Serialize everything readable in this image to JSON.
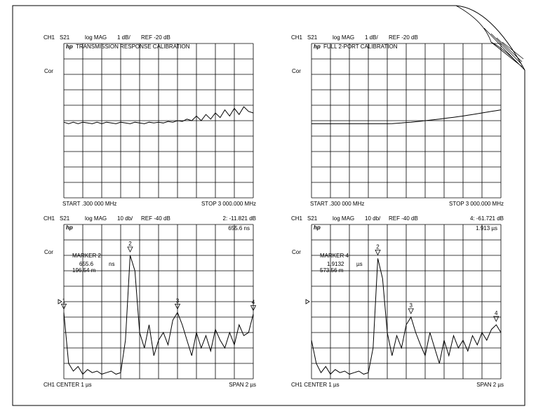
{
  "panels": [
    {
      "header": {
        "channel": "CH1",
        "param": "S21",
        "format": "log MAG",
        "scale": "1 dB/",
        "ref": "REF -20 dB"
      },
      "logo": "hp",
      "title": "TRANSMISSION RESPONSE CALIBRATION",
      "cor": "Cor",
      "footer_left": "START .300 000 MHz",
      "footer_right": "STOP 3 000.000 MHz",
      "trace": [
        4.9,
        4.8,
        4.9,
        4.8,
        4.9,
        4.85,
        4.8,
        4.9,
        4.8,
        4.9,
        4.85,
        4.8,
        4.9,
        4.85,
        4.8,
        4.9,
        4.85,
        4.8,
        4.9,
        4.85,
        4.9,
        4.85,
        4.95,
        4.9,
        5.0,
        4.95,
        5.1,
        5.0,
        5.3,
        5.0,
        5.4,
        5.1,
        5.5,
        5.2,
        5.7,
        5.3,
        5.8,
        5.4,
        5.9,
        5.6,
        5.5
      ]
    },
    {
      "header": {
        "channel": "CH1",
        "param": "S21",
        "format": "log MAG",
        "scale": "1 dB/",
        "ref": "REF -20 dB"
      },
      "logo": "hp",
      "title": "FULL 2-PORT CALIBRATION",
      "cor": "Cor",
      "footer_left": "START .300 000 MHz",
      "footer_right": "STOP 3 000.000 MHz",
      "trace": [
        4.8,
        4.8,
        4.8,
        4.8,
        4.8,
        4.8,
        4.8,
        4.8,
        4.8,
        4.8,
        4.8,
        4.8,
        4.8,
        4.8,
        4.8,
        4.8,
        4.8,
        4.81,
        4.83,
        4.85,
        4.88,
        4.9,
        4.93,
        4.96,
        5.0,
        5.03,
        5.07,
        5.1,
        5.14,
        5.18,
        5.22,
        5.26,
        5.3,
        5.35,
        5.4,
        5.45,
        5.5,
        5.55,
        5.6,
        5.65,
        5.7
      ]
    },
    {
      "header": {
        "channel": "CH1",
        "param": "S21",
        "format": "log MAG",
        "scale": "10 db/",
        "ref": "REF -40 dB",
        "readout": "2: -11.821 dB"
      },
      "logo": "hp",
      "readout_time": "655.6 ns",
      "cor": "Cor",
      "marker_box": {
        "label": "MARKER 2",
        "time": "655.6",
        "unit": "ns",
        "distance": "196.54 m"
      },
      "footer_left": "CH1 CENTER 1 µs",
      "footer_right": "SPAN 2 µs",
      "trace": [
        4.3,
        1.0,
        0.5,
        0.8,
        0.3,
        0.6,
        0.4,
        0.5,
        0.3,
        0.4,
        0.5,
        0.3,
        0.4,
        2.5,
        8.0,
        7.0,
        3.0,
        2.0,
        3.5,
        1.5,
        2.5,
        3.0,
        2.2,
        3.8,
        4.3,
        3.5,
        2.5,
        1.5,
        3.0,
        2.0,
        2.8,
        1.8,
        3.2,
        2.5,
        2.0,
        3.0,
        2.2,
        3.5,
        2.8,
        3.0,
        4.2
      ],
      "markers": [
        {
          "label": "1",
          "x": 0,
          "y": 4.3
        },
        {
          "label": "2",
          "x": 3.5,
          "y": 8.0
        },
        {
          "label": "3",
          "x": 6,
          "y": 4.3
        },
        {
          "label": "4",
          "x": 10,
          "y": 4.2
        }
      ]
    },
    {
      "header": {
        "channel": "CH1",
        "param": "S21",
        "format": "log MAG",
        "scale": "10 db/",
        "ref": "REF -40 dB",
        "readout": "4: -61.721 dB"
      },
      "logo": "hp",
      "readout_time": "1.913 µs",
      "cor": "Cor",
      "marker_box": {
        "label": "MARKER 4",
        "time": "1.9132",
        "unit": "µs",
        "distance": "573.56 m"
      },
      "footer_left": "CH1 CENTER 1 µs",
      "footer_right": "SPAN 2 µs",
      "trace": [
        2.5,
        1.0,
        0.4,
        0.8,
        0.3,
        0.6,
        0.4,
        0.5,
        0.3,
        0.4,
        0.5,
        0.3,
        0.4,
        2.0,
        7.8,
        6.5,
        3.0,
        1.5,
        2.8,
        2.0,
        3.5,
        4.0,
        3.0,
        2.2,
        1.5,
        3.0,
        2.0,
        1.0,
        2.5,
        1.5,
        2.8,
        2.0,
        2.5,
        1.8,
        2.8,
        2.2,
        3.0,
        2.5,
        3.2,
        3.5,
        3.0
      ],
      "markers": [
        {
          "label": "2",
          "x": 3.5,
          "y": 7.8
        },
        {
          "label": "3",
          "x": 5.25,
          "y": 4.0
        },
        {
          "label": "4",
          "x": 9.75,
          "y": 3.5
        }
      ]
    }
  ]
}
